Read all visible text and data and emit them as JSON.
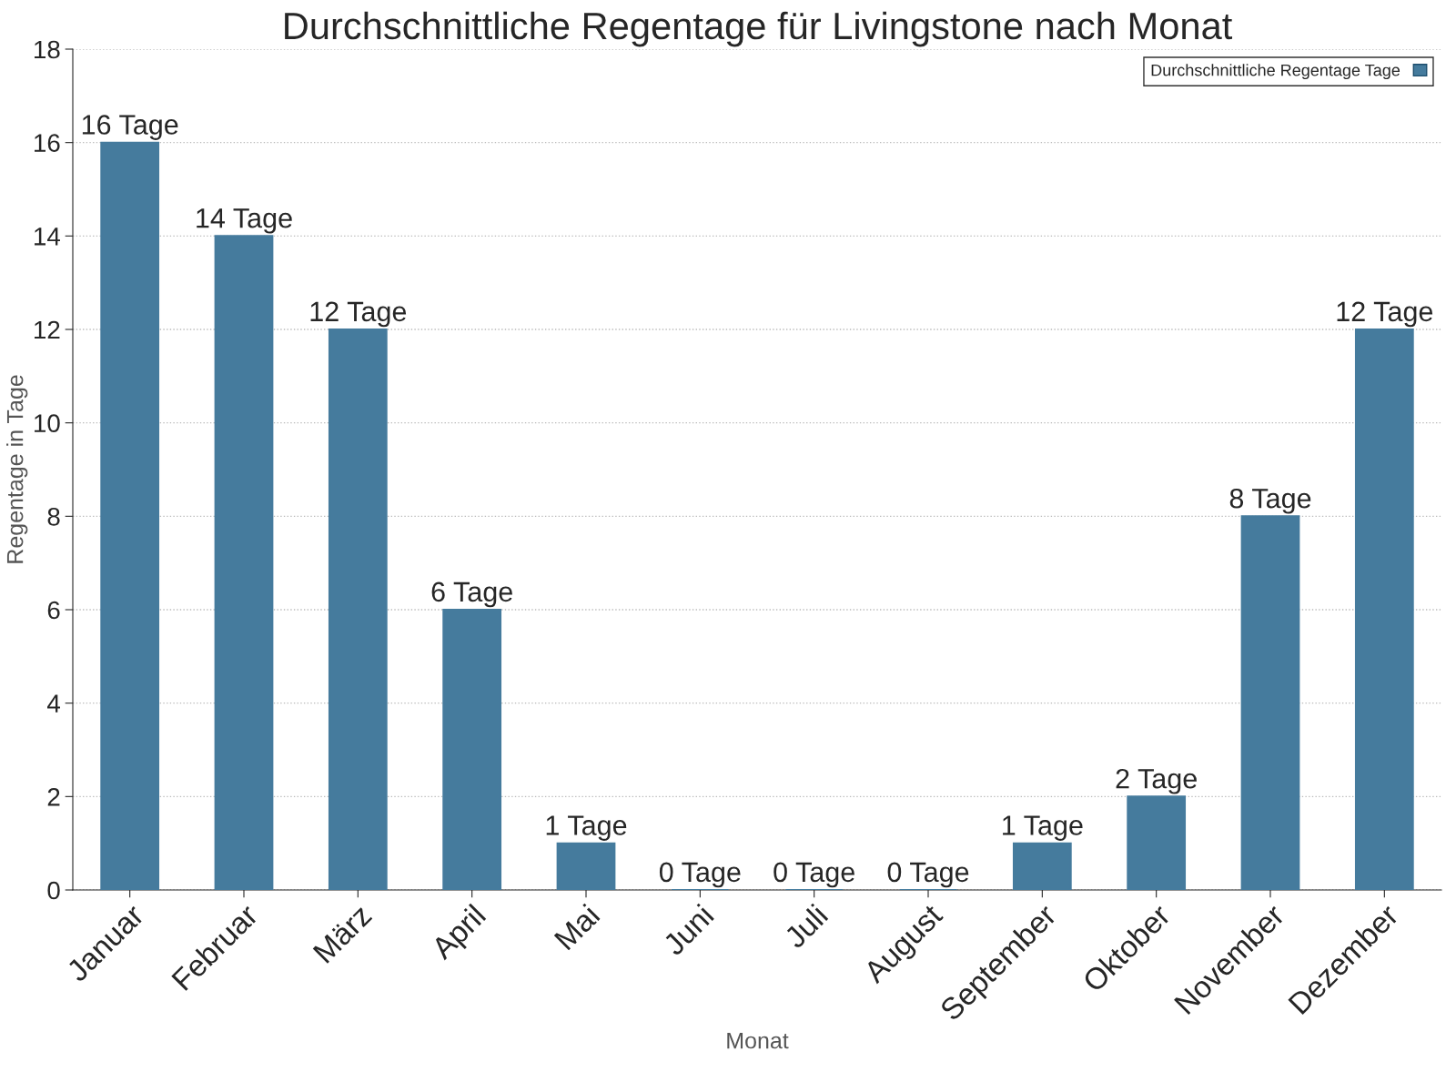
{
  "chart_data": {
    "type": "bar",
    "title": "Durchschnittliche Regentage für Livingstone nach Monat",
    "xlabel": "Monat",
    "ylabel": "Regentage in Tage",
    "categories": [
      "Januar",
      "Februar",
      "März",
      "April",
      "Mai",
      "Juni",
      "Juli",
      "August",
      "September",
      "Oktober",
      "November",
      "Dezember"
    ],
    "series": [
      {
        "name": "Durchschnittliche Regentage Tage",
        "color": "#457b9d",
        "values": [
          16,
          14,
          12,
          6,
          1,
          0,
          0,
          0,
          1,
          2,
          8,
          12
        ],
        "value_labels": [
          "16 Tage",
          "14 Tage",
          "12 Tage",
          "6 Tage",
          "1 Tage",
          "0 Tage",
          "0 Tage",
          "0 Tage",
          "1 Tage",
          "2 Tage",
          "8 Tage",
          "12 Tage"
        ]
      }
    ],
    "ylim": [
      0,
      18
    ],
    "yticks": [
      0,
      2,
      4,
      6,
      8,
      10,
      12,
      14,
      16,
      18
    ],
    "grid": "y",
    "legend": "top right"
  }
}
